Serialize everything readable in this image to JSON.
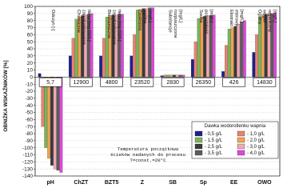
{
  "chart_data": {
    "type": "bar",
    "y_label": "OBNIŻKA WSKAŹNIKÓW [%]",
    "categories": [
      "pH",
      "ChZT",
      "BZT5",
      "Z",
      "SB",
      "Sp",
      "EE",
      "OWO"
    ],
    "ylim": [
      -140,
      100
    ],
    "yticks": [
      -140,
      -130,
      -120,
      -110,
      -100,
      -90,
      -80,
      -70,
      -60,
      -50,
      -40,
      -30,
      -20,
      -10,
      0,
      10,
      20,
      30,
      40,
      50,
      60,
      70,
      80,
      90,
      100
    ],
    "grid": true,
    "legend_title": "Dawka wodorotlenku wapnia",
    "legend_position": "lower right",
    "series": [
      {
        "name": "- 0,5 g/L",
        "color": "#1f1f8f",
        "values": [
          5,
          30,
          30,
          30,
          2,
          25,
          8,
          35
        ]
      },
      {
        "name": "- 1,0 g/L",
        "color": "#e9836f",
        "values": [
          -70,
          55,
          55,
          60,
          3,
          50,
          45,
          60
        ]
      },
      {
        "name": "- 1,5 g/L",
        "color": "#79b65a",
        "values": [
          -100,
          82,
          85,
          95,
          3,
          83,
          68,
          85
        ]
      },
      {
        "name": "- 2,0 g/L",
        "color": "#f2a250",
        "values": [
          -115,
          85,
          87,
          96,
          3,
          85,
          70,
          88
        ]
      },
      {
        "name": "- 2,5 g/L",
        "color": "#3a3a3a",
        "values": [
          -125,
          87,
          88,
          97,
          3,
          86,
          72,
          89
        ]
      },
      {
        "name": "- 3,0 g/L",
        "color": "#f4a6b4",
        "values": [
          -130,
          88,
          88,
          97,
          3,
          87,
          75,
          90
        ]
      },
      {
        "name": "- 3,5 g/L",
        "color": "#5c5c5c",
        "values": [
          -132,
          89,
          89,
          98,
          3,
          87,
          78,
          90
        ]
      },
      {
        "name": "- 4,0 g/L",
        "color": "#e046dc",
        "values": [
          -135,
          90,
          89,
          98,
          3,
          88,
          80,
          91
        ]
      }
    ],
    "annotations": [
      {
        "box": "5,7",
        "lines": [
          "Odczyn [-]"
        ]
      },
      {
        "box": "12900",
        "lines": [
          "Chemiczne",
          "zapotrzebowanie",
          "tlenu [mg O2/L]"
        ]
      },
      {
        "box": "4800",
        "lines": [
          "Biochemiczne",
          "zapotrzebowanie",
          "tlenu [mg O2/L]"
        ]
      },
      {
        "box": "23520",
        "lines": [
          "Zawiesina",
          "ogólna",
          "[mg/L]"
        ]
      },
      {
        "box": "2830",
        "lines": [
          "Substancje",
          "rozpuszczone",
          "[mg/L]"
        ]
      },
      {
        "box": "26350",
        "lines": [
          "Sucha",
          "pozostałość",
          "[mg/L]"
        ]
      },
      {
        "box": "426",
        "lines": [
          "Ekstrakt",
          "eterowy",
          "[mg/L]"
        ]
      },
      {
        "box": "14830",
        "lines": [
          "Ogólny",
          "węgiel",
          "organiczny",
          "[mg/L]"
        ]
      }
    ],
    "note": [
      "Temperatura początkowa",
      "ścieków nadanych do procesu",
      "T=const.=20°C"
    ]
  }
}
